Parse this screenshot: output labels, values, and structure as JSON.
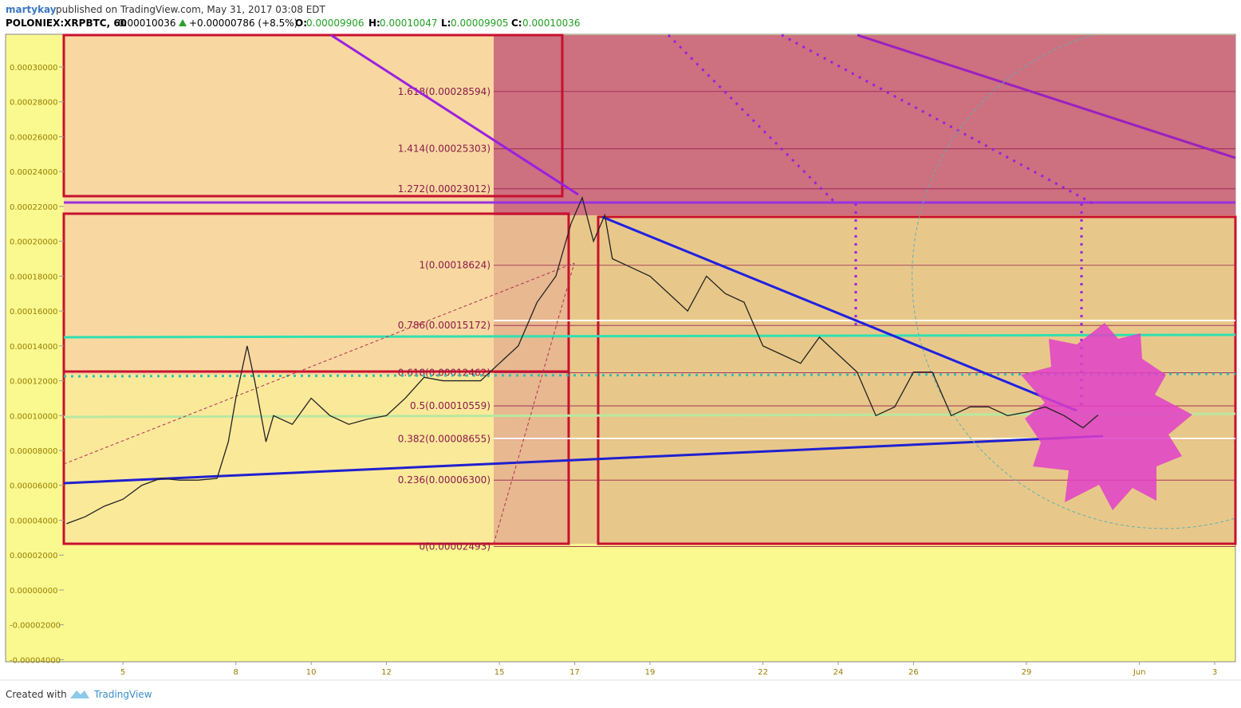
{
  "header": {
    "author": "martykay",
    "published": "published on TradingView.com, May 31, 2017 03:08 EDT",
    "symbol": "POLONIEX:XRPBTC, 60",
    "last": "0.00010036",
    "change": "+0.00000786 (+8.5%)",
    "open_label": "O:",
    "open": "0.00009906",
    "high_label": "H:",
    "high": "0.00010047",
    "low_label": "L:",
    "low": "0.00009905",
    "close_label": "C:",
    "close": "0.00010036"
  },
  "footer": {
    "created": "Created with",
    "brand": "TradingView"
  },
  "chart_data": {
    "type": "line",
    "color": "#222222",
    "x": [
      3.5,
      4,
      4.5,
      5,
      5.5,
      6,
      6.5,
      7,
      7.5,
      7.8,
      8,
      8.3,
      8.5,
      8.8,
      9,
      9.5,
      10,
      10.5,
      11,
      11.5,
      12,
      12.5,
      13,
      13.5,
      14,
      14.5,
      15,
      15.5,
      16,
      16.5,
      16.9,
      17.2,
      17.5,
      17.8,
      18,
      18.5,
      19,
      19.5,
      20,
      20.5,
      21,
      21.5,
      22,
      22.5,
      23,
      23.5,
      24,
      24.5,
      25,
      25.5,
      26,
      26.5,
      27,
      27.5,
      28,
      28.5,
      29,
      29.5,
      30,
      30.5,
      30.9
    ],
    "values": [
      3.8e-05,
      4.2e-05,
      4.8e-05,
      5.2e-05,
      6e-05,
      6.4e-05,
      6.3e-05,
      6.3e-05,
      6.4e-05,
      8.5e-05,
      0.00011,
      0.00014,
      0.00012,
      8.5e-05,
      0.0001,
      9.5e-05,
      0.00011,
      0.0001,
      9.5e-05,
      9.8e-05,
      0.0001,
      0.00011,
      0.000122,
      0.00012,
      0.00012,
      0.00012,
      0.00013,
      0.00014,
      0.000165,
      0.00018,
      0.00021,
      0.000225,
      0.0002,
      0.000215,
      0.00019,
      0.000185,
      0.00018,
      0.00017,
      0.00016,
      0.00018,
      0.00017,
      0.000165,
      0.00014,
      0.000135,
      0.00013,
      0.000145,
      0.000135,
      0.000125,
      0.0001,
      0.000105,
      0.000125,
      0.000125,
      0.0001,
      0.000105,
      0.000105,
      0.0001,
      0.000102,
      0.000105,
      0.0001,
      9.3e-05,
      0.00010036
    ],
    "xlim": [
      3.43,
      34.55
    ],
    "xticks": [
      5,
      8,
      10,
      12,
      15,
      17,
      19,
      22,
      24,
      26,
      29,
      {
        "value": 32,
        "label": "Jun"
      },
      {
        "value": 34,
        "label": "3"
      }
    ],
    "ylim": [
      -4.12e-05,
      0.0003183
    ],
    "yticks": [
      {
        "value": -4e-05,
        "label": "-0.00004000"
      },
      {
        "value": -2e-05,
        "label": "-0.00002000"
      },
      {
        "value": 0,
        "label": "0.00000000"
      },
      {
        "value": 2e-05,
        "label": "0.00002000"
      },
      {
        "value": 4e-05,
        "label": "0.00004000"
      },
      {
        "value": 6e-05,
        "label": "0.00006000"
      },
      {
        "value": 8e-05,
        "label": "0.00008000"
      },
      {
        "value": 0.0001,
        "label": "0.00010000"
      },
      {
        "value": 0.00012,
        "label": "0.00012000"
      },
      {
        "value": 0.00014,
        "label": "0.00014000"
      },
      {
        "value": 0.00016,
        "label": "0.00016000"
      },
      {
        "value": 0.00018,
        "label": "0.00018000"
      },
      {
        "value": 0.0002,
        "label": "0.00020000"
      },
      {
        "value": 0.00022,
        "label": "0.00022000"
      },
      {
        "value": 0.00024,
        "label": "0.00024000"
      },
      {
        "value": 0.00026,
        "label": "0.00026000"
      },
      {
        "value": 0.00028,
        "label": "0.00028000"
      },
      {
        "value": 0.0003,
        "label": "0.00030000"
      }
    ],
    "fib_levels": [
      {
        "value": 0.00028594,
        "label": "1.618(0.00028594)"
      },
      {
        "value": 0.00025303,
        "label": "1.414(0.00025303)"
      },
      {
        "value": 0.00023012,
        "label": "1.272(0.00023012)"
      },
      {
        "value": 0.00018624,
        "label": "1(0.00018624)"
      },
      {
        "value": 0.00015172,
        "label": "0.786(0.00015172)"
      },
      {
        "value": 0.00012462,
        "label": "0.618(0.00012462)"
      },
      {
        "value": 0.00010559,
        "label": "0.5(0.00010559)"
      },
      {
        "value": 8.655e-05,
        "label": "0.382(0.00008655)"
      },
      {
        "value": 6.3e-05,
        "label": "0.236(0.00006300)"
      },
      {
        "value": 2.493e-05,
        "label": "0(0.00002493)"
      }
    ]
  }
}
